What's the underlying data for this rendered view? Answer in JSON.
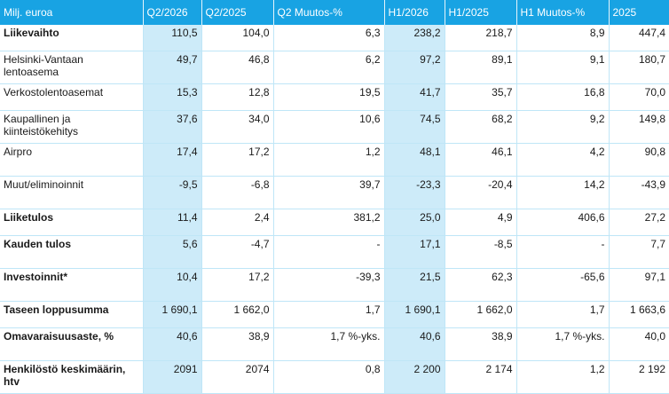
{
  "headers": [
    "Milj. euroa",
    "Q2/2026",
    "Q2/2025",
    "Q2 Muutos-%",
    "H1/2026",
    "H1/2025",
    "H1 Muutos-%",
    "2025"
  ],
  "rows": [
    {
      "label": "Liikevaihto",
      "bold": true,
      "values": [
        "110,5",
        "104,0",
        "6,3",
        "238,2",
        "218,7",
        "8,9",
        "447,4"
      ]
    },
    {
      "label": "Helsinki-Vantaan lentoasema",
      "bold": false,
      "values": [
        "49,7",
        "46,8",
        "6,2",
        "97,2",
        "89,1",
        "9,1",
        "180,7"
      ]
    },
    {
      "label": "Verkostolentoasemat",
      "bold": false,
      "values": [
        "15,3",
        "12,8",
        "19,5",
        "41,7",
        "35,7",
        "16,8",
        "70,0"
      ]
    },
    {
      "label": "Kaupallinen ja kiinteistökehitys",
      "bold": false,
      "values": [
        "37,6",
        "34,0",
        "10,6",
        "74,5",
        "68,2",
        "9,2",
        "149,8"
      ]
    },
    {
      "label": "Airpro",
      "bold": false,
      "values": [
        "17,4",
        "17,2",
        "1,2",
        "48,1",
        "46,1",
        "4,2",
        "90,8"
      ]
    },
    {
      "label": "Muut/eliminoinnit",
      "bold": false,
      "values": [
        "-9,5",
        "-6,8",
        "39,7",
        "-23,3",
        "-20,4",
        "14,2",
        "-43,9"
      ]
    },
    {
      "label": "Liiketulos",
      "bold": true,
      "values": [
        "11,4",
        "2,4",
        "381,2",
        "25,0",
        "4,9",
        "406,6",
        "27,2"
      ]
    },
    {
      "label": "Kauden tulos",
      "bold": true,
      "values": [
        "5,6",
        "-4,7",
        "-",
        "17,1",
        "-8,5",
        "-",
        "7,7"
      ]
    },
    {
      "label": "Investoinnit*",
      "bold": true,
      "values": [
        "10,4",
        "17,2",
        "-39,3",
        "21,5",
        "62,3",
        "-65,6",
        "97,1"
      ]
    },
    {
      "label": "Taseen loppusumma",
      "bold": true,
      "values": [
        "1 690,1",
        "1 662,0",
        "1,7",
        "1 690,1",
        "1 662,0",
        "1,7",
        "1 663,6"
      ]
    },
    {
      "label": "Omavaraisuusaste, %",
      "bold": true,
      "values": [
        "40,6",
        "38,9",
        "1,7 %-yks.",
        "40,6",
        "38,9",
        "1,7 %-yks.",
        "40,0"
      ]
    },
    {
      "label": "Henkilöstö keskimäärin, htv",
      "bold": true,
      "values": [
        "2091",
        "2074",
        "0,8",
        "2 200",
        "2 174",
        "1,2",
        "2 192"
      ]
    }
  ],
  "colors": {
    "header_bg": "#18a3e3",
    "highlight_bg": "#cdebf9",
    "grid": "#bfe6f7"
  }
}
